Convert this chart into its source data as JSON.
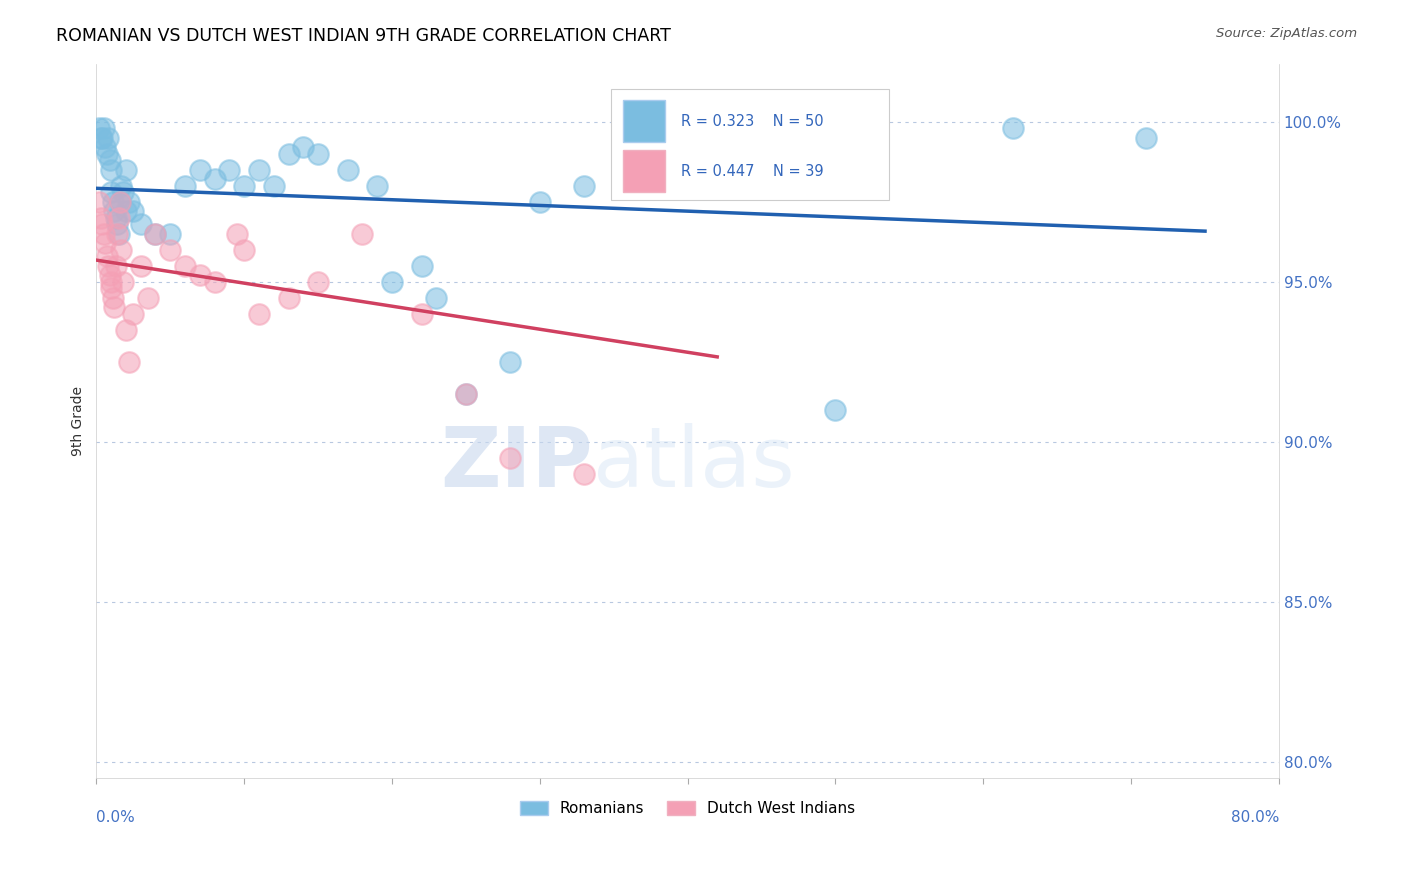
{
  "title": "ROMANIAN VS DUTCH WEST INDIAN 9TH GRADE CORRELATION CHART",
  "source": "Source: ZipAtlas.com",
  "ylabel": "9th Grade",
  "xlim": [
    0.0,
    80.0
  ],
  "ylim": [
    79.5,
    101.8
  ],
  "yticks": [
    80.0,
    85.0,
    90.0,
    95.0,
    100.0
  ],
  "R_romanian": 0.323,
  "N_romanian": 50,
  "R_dutch": 0.447,
  "N_dutch": 39,
  "color_romanian": "#7bbde0",
  "color_dutch": "#f4a0b5",
  "trendline_color_romanian": "#2060b0",
  "trendline_color_dutch": "#d04060",
  "romanian_x": [
    0.2,
    0.3,
    0.4,
    0.5,
    0.6,
    0.7,
    0.8,
    0.9,
    1.0,
    1.0,
    1.1,
    1.2,
    1.3,
    1.4,
    1.5,
    1.6,
    1.7,
    1.8,
    2.0,
    2.0,
    2.2,
    2.5,
    3.0,
    4.0,
    5.0,
    6.0,
    7.0,
    8.0,
    9.0,
    10.0,
    11.0,
    12.0,
    13.0,
    14.0,
    15.0,
    17.0,
    19.0,
    20.0,
    22.0,
    23.0,
    25.0,
    28.0,
    30.0,
    33.0,
    36.0,
    38.0,
    42.0,
    50.0,
    62.0,
    71.0
  ],
  "romanian_y": [
    99.8,
    99.5,
    99.5,
    99.8,
    99.2,
    99.0,
    99.5,
    98.8,
    98.5,
    97.8,
    97.5,
    97.2,
    97.0,
    96.8,
    96.5,
    97.5,
    98.0,
    97.8,
    98.5,
    97.2,
    97.5,
    97.2,
    96.8,
    96.5,
    96.5,
    98.0,
    98.5,
    98.2,
    98.5,
    98.0,
    98.5,
    98.0,
    99.0,
    99.2,
    99.0,
    98.5,
    98.0,
    95.0,
    95.5,
    94.5,
    91.5,
    92.5,
    97.5,
    98.0,
    99.5,
    99.0,
    99.5,
    91.0,
    99.8,
    99.5
  ],
  "dutch_x": [
    0.2,
    0.3,
    0.4,
    0.5,
    0.6,
    0.7,
    0.8,
    0.9,
    1.0,
    1.0,
    1.1,
    1.2,
    1.3,
    1.4,
    1.5,
    1.6,
    1.7,
    1.8,
    2.0,
    2.2,
    2.5,
    3.0,
    3.5,
    4.0,
    5.0,
    6.0,
    7.0,
    8.0,
    9.5,
    10.0,
    11.0,
    13.0,
    15.0,
    18.0,
    22.0,
    25.0,
    28.0,
    33.0,
    40.0
  ],
  "dutch_y": [
    97.5,
    97.0,
    96.8,
    96.5,
    96.2,
    95.8,
    95.5,
    95.2,
    95.0,
    94.8,
    94.5,
    94.2,
    95.5,
    96.5,
    97.0,
    97.5,
    96.0,
    95.0,
    93.5,
    92.5,
    94.0,
    95.5,
    94.5,
    96.5,
    96.0,
    95.5,
    95.2,
    95.0,
    96.5,
    96.0,
    94.0,
    94.5,
    95.0,
    96.5,
    94.0,
    91.5,
    89.5,
    89.0,
    99.5
  ]
}
